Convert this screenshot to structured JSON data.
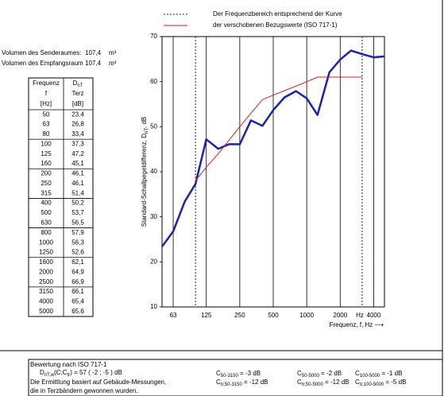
{
  "volumes": [
    {
      "label": "Volumen des Senderaumes:",
      "value": "107,4",
      "unit": "m³"
    },
    {
      "label": "Volumen des Empfangsraum",
      "value": "107,4",
      "unit": "m³"
    }
  ],
  "table": {
    "header": [
      [
        "Frequenz",
        "f",
        "[Hz]"
      ],
      [
        {
          "main": "D",
          "sub": "nT"
        },
        "Terz",
        "[dB]"
      ]
    ],
    "rows": [
      [
        "50",
        "23,4"
      ],
      [
        "63",
        "26,8"
      ],
      [
        "80",
        "33,4"
      ],
      [
        "100",
        "37,3"
      ],
      [
        "125",
        "47,2"
      ],
      [
        "160",
        "45,1"
      ],
      [
        "200",
        "46,1"
      ],
      [
        "250",
        "46,1"
      ],
      [
        "315",
        "51,4"
      ],
      [
        "400",
        "50,2"
      ],
      [
        "500",
        "53,7"
      ],
      [
        "630",
        "56,5"
      ],
      [
        "800",
        "57,9"
      ],
      [
        "1000",
        "56,3"
      ],
      [
        "1250",
        "52,6"
      ],
      [
        "1600",
        "62,1"
      ],
      [
        "2000",
        "64,9"
      ],
      [
        "2500",
        "66,9"
      ],
      [
        "3150",
        "66,1"
      ],
      [
        "4000",
        "65,4"
      ],
      [
        "5000",
        "65,6"
      ]
    ]
  },
  "chart_data": {
    "type": "line",
    "y_label": {
      "main": "Standard-Schallpegeldifferenz, D",
      "sub": "nT",
      "suffix": ", dB"
    },
    "x_label": "Frequenz, f, Hz ⟶",
    "x_unit": "Hz",
    "xscale": "log",
    "xlim": [
      50,
      5000
    ],
    "xticks": [
      63,
      125,
      250,
      500,
      1000,
      2000,
      4000
    ],
    "ylim": [
      10,
      70
    ],
    "yticks": [
      10,
      20,
      30,
      40,
      50,
      60,
      70
    ],
    "grid": "x",
    "range_marker": {
      "label": "Der Frequenzbereich entsprechend der Kurve",
      "x": [
        100,
        3150
      ],
      "color": "#1a1a8c"
    },
    "series": [
      {
        "color": "#1a22b0",
        "x": [
          50,
          63,
          80,
          100,
          125,
          160,
          200,
          250,
          315,
          400,
          500,
          630,
          800,
          1000,
          1250,
          1600,
          2000,
          2500,
          3150,
          4000,
          5000
        ],
        "values": [
          23.4,
          26.8,
          33.4,
          37.3,
          47.2,
          45.1,
          46.1,
          46.1,
          51.4,
          50.2,
          53.7,
          56.5,
          57.9,
          56.3,
          52.6,
          62.1,
          64.9,
          66.9,
          66.1,
          65.4,
          65.6
        ]
      },
      {
        "name": "der verschobenen Bezugswerte (ISO 717-1)",
        "color": "#d42020",
        "x": [
          100,
          125,
          160,
          200,
          250,
          315,
          400,
          500,
          630,
          800,
          1000,
          1250,
          1600,
          2000,
          2500,
          3150
        ],
        "values": [
          38,
          41,
          44,
          47,
          50,
          53,
          56,
          57,
          58,
          59,
          60,
          61,
          61,
          61,
          61,
          61
        ]
      }
    ]
  },
  "rating": {
    "title": "Bewertung nach ISO 717-1",
    "result": {
      "main": "D",
      "sub": "nT,w",
      "rest": "(C;C",
      "sub2": "tr",
      "rest2": ")  =  57   (   -2   ;   -5   ) dB"
    },
    "notes": [
      "Die Ermittlung basiert auf Gebäude-Messungen,",
      "die in Terzbändern gewonnen wurden."
    ],
    "terms": [
      [
        {
          "c": "C",
          "sub": "50-3150",
          "value": "-3",
          "unit": "dB"
        },
        {
          "c": "C",
          "sub": "50-5000",
          "value": "-2",
          "unit": "dB"
        },
        {
          "c": "C",
          "sub": "100-5000",
          "value": "-1",
          "unit": "dB"
        }
      ],
      [
        {
          "c": "C",
          "sub": "tr,50-3150",
          "value": "-12",
          "unit": "dB"
        },
        {
          "c": "C",
          "sub": "tr,50-5000",
          "value": "-12",
          "unit": "dB"
        },
        {
          "c": "C",
          "sub": "tr,100-5000",
          "value": "-5",
          "unit": "dB"
        }
      ]
    ]
  }
}
